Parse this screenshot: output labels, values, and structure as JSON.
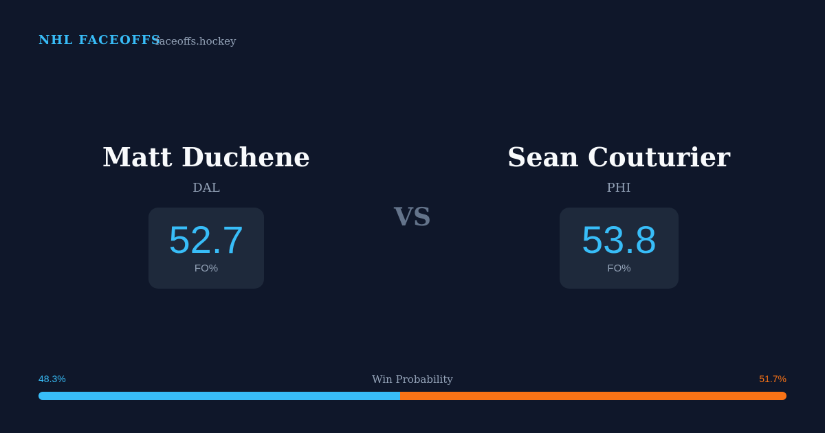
{
  "header": {
    "brand": "NHL FACEOFFS",
    "site": "faceoffs.hockey"
  },
  "players": [
    {
      "name": "Matt Duchene",
      "team": "DAL",
      "fo_pct": 52.7,
      "fo_label": "FO%"
    },
    {
      "name": "Sean Couturier",
      "team": "PHI",
      "fo_pct": 53.8,
      "fo_label": "FO%"
    }
  ],
  "versus": "VS",
  "win_probability": {
    "label": "Win Probability",
    "segments": [
      {
        "value": 48.3,
        "value_label": "48.3%",
        "color": "#38bdf8"
      },
      {
        "value": 51.7,
        "value_label": "51.7%",
        "color": "#f97316"
      }
    ]
  }
}
